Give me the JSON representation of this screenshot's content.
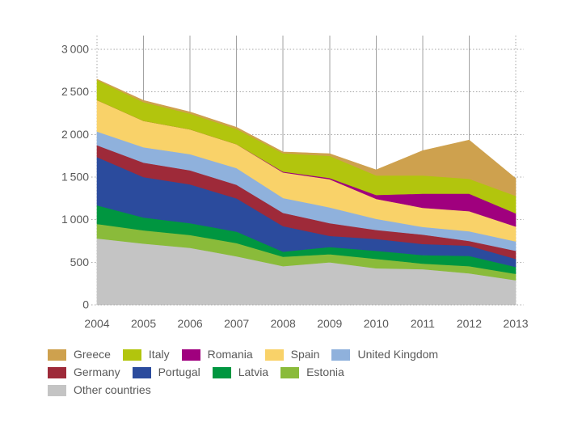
{
  "chart_data": {
    "type": "area",
    "stacked": true,
    "title": "",
    "x_labels": [
      "2004",
      "2005",
      "2006",
      "2007",
      "2008",
      "2009",
      "2010",
      "2011",
      "2012",
      "2013"
    ],
    "y_tick_labels": [
      "0",
      "500",
      "1 000",
      "1 500",
      "2 000",
      "2 500",
      "3 000"
    ],
    "ylim": [
      0,
      3000
    ],
    "y_tick_step": 500,
    "grid": {
      "horizontal": "dotted",
      "vertical": "solid"
    },
    "legend_position": "bottom-left",
    "series": [
      {
        "name": "Greece",
        "color": "#CEA14E",
        "values": [
          10,
          20,
          20,
          20,
          15,
          25,
          65,
          290,
          455,
          205
        ]
      },
      {
        "name": "Italy",
        "color": "#B2C50D",
        "values": [
          235,
          220,
          185,
          180,
          215,
          260,
          230,
          215,
          175,
          205
        ]
      },
      {
        "name": "Romania",
        "color": "#A0007E",
        "values": [
          0,
          0,
          0,
          0,
          10,
          15,
          45,
          165,
          205,
          155
        ]
      },
      {
        "name": "Spain",
        "color": "#F9D269",
        "values": [
          370,
          310,
          290,
          280,
          300,
          330,
          235,
          225,
          235,
          175
        ]
      },
      {
        "name": "United Kingdom",
        "color": "#8FB1DC",
        "values": [
          160,
          180,
          190,
          195,
          175,
          185,
          130,
          90,
          115,
          110
        ]
      },
      {
        "name": "Germany",
        "color": "#9E2A39",
        "values": [
          140,
          170,
          165,
          160,
          155,
          150,
          105,
          110,
          55,
          95
        ]
      },
      {
        "name": "Portugal",
        "color": "#2B4B9D",
        "values": [
          565,
          475,
          455,
          390,
          300,
          130,
          140,
          130,
          120,
          95
        ]
      },
      {
        "name": "Latvia",
        "color": "#009640",
        "values": [
          220,
          150,
          140,
          135,
          60,
          85,
          95,
          100,
          120,
          80
        ]
      },
      {
        "name": "Estonia",
        "color": "#8ABB3A",
        "values": [
          170,
          155,
          150,
          155,
          110,
          95,
          110,
          65,
          85,
          75
        ]
      },
      {
        "name": "Other countries",
        "color": "#C4C4C4",
        "values": [
          780,
          720,
          670,
          570,
          455,
          500,
          430,
          420,
          370,
          290
        ]
      }
    ],
    "stack_order_bottom_to_top": [
      "Other countries",
      "Estonia",
      "Latvia",
      "Portugal",
      "Germany",
      "United Kingdom",
      "Spain",
      "Romania",
      "Italy",
      "Greece"
    ],
    "legend_rows": [
      [
        "Greece",
        "Italy",
        "Romania",
        "Spain",
        "United Kingdom"
      ],
      [
        "Germany",
        "Portugal",
        "Latvia",
        "Estonia"
      ],
      [
        "Other countries"
      ]
    ]
  },
  "styles": {
    "background": "#FFFFFF",
    "text_color": "#595959",
    "dotted_grid_color": "#A6A6A6",
    "vertical_grid_color": "#A3A3A3"
  }
}
